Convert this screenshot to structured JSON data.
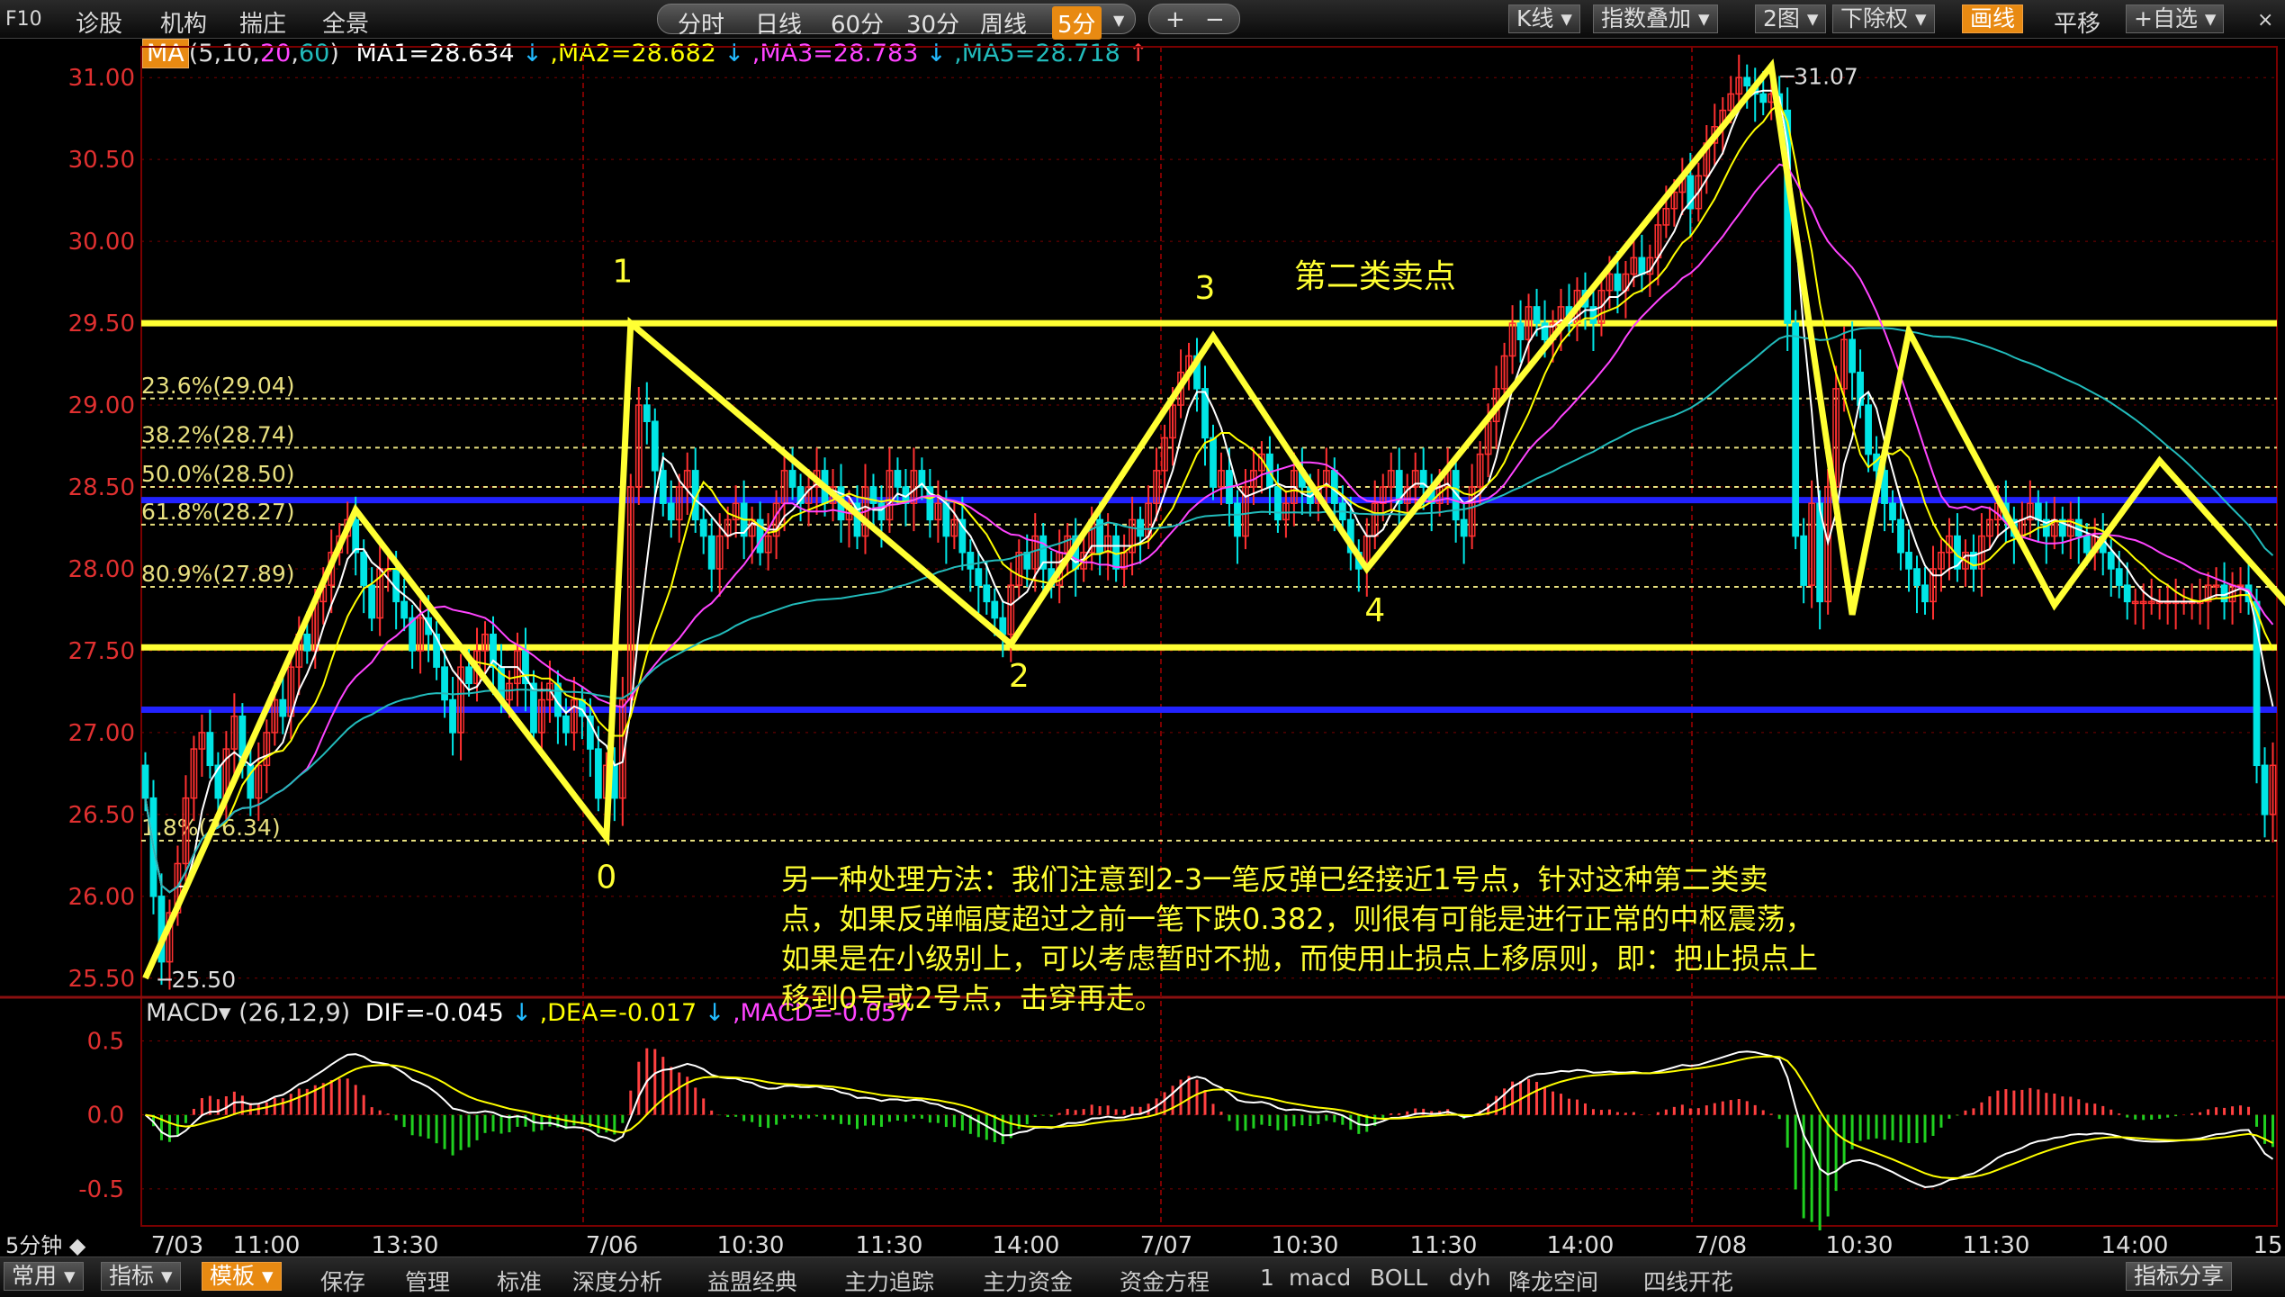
{
  "toolbar": {
    "left_items": [
      "F10",
      "诊股",
      "机构",
      "揣庄",
      "全景"
    ],
    "period_tabs": [
      "分时",
      "日线",
      "60分",
      "30分",
      "周线",
      "5分"
    ],
    "active_period": "5分",
    "zoom_in": "+",
    "zoom_out": "−",
    "right_items": [
      "K线",
      "指数叠加",
      "2图",
      "下除权",
      "画线",
      "平移",
      "+自选"
    ],
    "active_right": "画线",
    "close_glyph": "×"
  },
  "ma_legend": {
    "name": "MA",
    "params_prefix": "(5,10,",
    "param_20": "20",
    "param_comma": ",",
    "param_60": "60",
    "params_suffix": ")",
    "ma1": "MA1=28.634",
    "ma2": ",MA2=28.682",
    "ma3": ",MA3=28.783",
    "ma5": ",MA5=28.718",
    "down_arrow": "↓",
    "up_arrow": "↑",
    "colors": {
      "ma1": "#ffffff",
      "ma2": "#ffff00",
      "ma3": "#ff44ff",
      "ma5": "#22bbbb"
    }
  },
  "macd_legend": {
    "name": "MACD",
    "params": "(26,12,9)",
    "dif": "DIF=-0.045",
    "dea": ",DEA=-0.017",
    "macd": ",MACD=-0.057"
  },
  "chart_data": {
    "type": "candlestick",
    "price_axis_ticks": [
      "31.00",
      "30.50",
      "30.00",
      "29.50",
      "29.00",
      "28.50",
      "28.00",
      "27.50",
      "27.00",
      "26.50",
      "26.00",
      "25.50"
    ],
    "price_ylim": [
      25.4,
      31.1
    ],
    "macd_axis_ticks": [
      "0.5",
      "0.0",
      "-0.5"
    ],
    "macd_ylim": [
      -0.75,
      0.6
    ],
    "time_labels": [
      "7/03",
      "11:00",
      "13:30",
      "7/06",
      "10:30",
      "11:30",
      "14:00",
      "7/07",
      "10:30",
      "11:30",
      "14:00",
      "7/08",
      "10:30",
      "11:30",
      "14:00",
      "15"
    ],
    "period_label": "5分钟",
    "high_marker": "31.07",
    "low_marker": "25.50",
    "fib_levels": [
      {
        "label": "23.6%(29.04)",
        "price": 29.04
      },
      {
        "label": "38.2%(28.74)",
        "price": 28.74
      },
      {
        "label": "50.0%(28.50)",
        "price": 28.5
      },
      {
        "label": "61.8%(28.27)",
        "price": 28.27
      },
      {
        "label": "80.9%(27.89)",
        "price": 27.89
      },
      {
        "label": "1.8%(26.34)",
        "price": 26.34
      }
    ],
    "horizontal_lines": [
      {
        "price": 29.5,
        "color": "#ffff33"
      },
      {
        "price": 27.52,
        "color": "#ffff33"
      },
      {
        "price": 28.42,
        "color": "#2222ff"
      },
      {
        "price": 27.14,
        "color": "#2222ff"
      }
    ],
    "zigzag": [
      {
        "bar": 0,
        "price": 25.5
      },
      {
        "bar": 26,
        "price": 28.36
      },
      {
        "bar": 57,
        "price": 26.36
      },
      {
        "bar": 60,
        "price": 29.5
      },
      {
        "bar": 107,
        "price": 27.54
      },
      {
        "bar": 132,
        "price": 29.42
      },
      {
        "bar": 151,
        "price": 28.0
      },
      {
        "bar": 201,
        "price": 31.07
      },
      {
        "bar": 211,
        "price": 27.72
      },
      {
        "bar": 218,
        "price": 29.45
      },
      {
        "bar": 236,
        "price": 27.78
      },
      {
        "bar": 249,
        "price": 28.66
      },
      {
        "bar": 288,
        "price": 26.5
      }
    ],
    "wave_labels": [
      {
        "text": "0",
        "bar": 57,
        "price": 26.05
      },
      {
        "text": "1",
        "bar": 59,
        "price": 29.75
      },
      {
        "text": "2",
        "bar": 108,
        "price": 27.28
      },
      {
        "text": "3",
        "bar": 131,
        "price": 29.65
      },
      {
        "text": "4",
        "bar": 152,
        "price": 27.68
      }
    ],
    "sell_label": {
      "text": "第二类卖点",
      "bar": 142,
      "price": 29.72
    },
    "closes": [
      26.6,
      26.0,
      25.6,
      25.9,
      26.2,
      26.6,
      26.9,
      27.0,
      26.8,
      26.6,
      26.9,
      27.1,
      26.8,
      26.6,
      26.8,
      27.0,
      27.2,
      27.1,
      27.4,
      27.6,
      27.5,
      27.8,
      27.9,
      28.1,
      28.2,
      28.3,
      28.1,
      27.9,
      27.7,
      28.0,
      28.0,
      27.8,
      27.7,
      27.5,
      27.7,
      27.6,
      27.4,
      27.2,
      27.0,
      27.4,
      27.3,
      27.5,
      27.6,
      27.4,
      27.2,
      27.3,
      27.5,
      27.3,
      27.0,
      27.2,
      27.3,
      27.1,
      27.0,
      27.2,
      27.1,
      26.9,
      26.6,
      26.8,
      26.6,
      27.2,
      28.5,
      29.0,
      28.9,
      28.6,
      28.4,
      28.3,
      28.5,
      28.6,
      28.3,
      28.2,
      28.0,
      28.2,
      28.3,
      28.4,
      28.2,
      28.3,
      28.1,
      28.2,
      28.4,
      28.6,
      28.5,
      28.4,
      28.5,
      28.6,
      28.4,
      28.5,
      28.3,
      28.4,
      28.2,
      28.5,
      28.4,
      28.3,
      28.6,
      28.5,
      28.4,
      28.6,
      28.5,
      28.3,
      28.4,
      28.2,
      28.3,
      28.1,
      28.0,
      27.9,
      27.8,
      27.7,
      27.6,
      27.9,
      28.1,
      28.0,
      28.2,
      28.0,
      27.9,
      28.1,
      28.2,
      28.0,
      28.1,
      28.3,
      28.1,
      28.2,
      28.0,
      28.1,
      28.3,
      28.2,
      28.4,
      28.6,
      28.8,
      29.0,
      29.2,
      29.3,
      29.1,
      28.8,
      28.5,
      28.6,
      28.4,
      28.2,
      28.5,
      28.6,
      28.7,
      28.5,
      28.3,
      28.4,
      28.6,
      28.5,
      28.4,
      28.5,
      28.6,
      28.4,
      28.3,
      28.1,
      28.0,
      28.2,
      28.4,
      28.5,
      28.6,
      28.4,
      28.5,
      28.6,
      28.5,
      28.4,
      28.5,
      28.6,
      28.3,
      28.2,
      28.5,
      28.7,
      28.9,
      29.1,
      29.3,
      29.5,
      29.4,
      29.6,
      29.5,
      29.4,
      29.5,
      29.6,
      29.5,
      29.7,
      29.6,
      29.5,
      29.7,
      29.8,
      29.7,
      29.8,
      29.9,
      29.8,
      29.9,
      30.1,
      30.2,
      30.3,
      30.4,
      30.2,
      30.4,
      30.6,
      30.7,
      30.8,
      30.9,
      31.0,
      30.95,
      30.9,
      30.85,
      30.9,
      30.8,
      29.5,
      28.2,
      27.9,
      28.4,
      27.8,
      28.5,
      29.1,
      29.4,
      29.2,
      29.0,
      28.7,
      28.6,
      28.4,
      28.3,
      28.1,
      28.0,
      27.9,
      27.8,
      28.0,
      28.1,
      28.2,
      28.0,
      28.1,
      28.0,
      28.2,
      28.3,
      28.4,
      28.3,
      28.2,
      28.3,
      28.4,
      28.3,
      28.2,
      28.3,
      28.2,
      28.3,
      28.2,
      28.1,
      28.2,
      28.1,
      28.0,
      27.9,
      27.8,
      27.8,
      27.8,
      27.8,
      27.8,
      27.8,
      27.8,
      27.8,
      27.8,
      27.8,
      27.9,
      27.9,
      27.8,
      27.9,
      27.9,
      27.8,
      26.8,
      26.5,
      26.8
    ]
  },
  "annotation": "另一种处理方法：我们注意到2-3一笔反弹已经接近1号点，针对这种第二类卖点，如果反弹幅度超过之前一笔下跌0.382，则很有可能是进行正常的中枢震荡，如果是在小级别上，可以考虑暂时不抛，而使用止损点上移原则，即：把止损点上移到0号或2号点，击穿再走。",
  "bottombar": {
    "items": [
      "常用",
      "指标",
      "模板",
      "保存",
      "管理",
      "标准",
      "深度分析",
      "益盟经典",
      "主力追踪",
      "主力资金",
      "资金方程",
      "1",
      "macd",
      "BOLL",
      "dyh",
      "降龙空间",
      "四线开花"
    ],
    "active": "模板",
    "right": "指标分享"
  },
  "colors": {
    "up": "#ff3030",
    "down": "#00e5e5",
    "grid": "#7a0000",
    "axis_text": "#e03030",
    "fib": "#e8e080",
    "zigzag": "#ffff33",
    "macd_up": "#ff4040",
    "macd_down": "#20d020"
  }
}
